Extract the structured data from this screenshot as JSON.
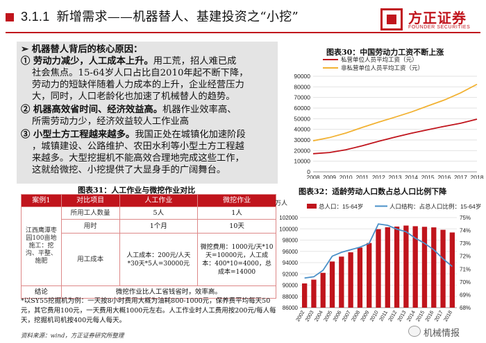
{
  "header": {
    "section_num": "3.1.1",
    "title": "新增需求——机器替人、基建投资之“小挖”",
    "logo_cn": "方正证券",
    "logo_en": "FOUNDER SECURITIES"
  },
  "panel": {
    "lines": [
      {
        "bold": "➢ 机器替人背后的核心原因：",
        "rest": ""
      },
      {
        "bold": "① 劳动力减少，人工成本上升。",
        "rest": "用工荒，招人难已成"
      },
      {
        "bold": "",
        "rest": "社会焦点。15-64岁人口占比自2010年起不断下降，"
      },
      {
        "bold": "",
        "rest": "劳动力的短缺伴随着人力成本的上升，企业经营压力"
      },
      {
        "bold": "",
        "rest": "大，同时，人口老龄化也加速了机械替人的趋势。"
      },
      {
        "bold": "② 机器高效省时间、经济效益高。",
        "rest": "机器作业效率高、"
      },
      {
        "bold": "",
        "rest": "所需劳动力少，经济效益较人工作业高"
      },
      {
        "bold": "③ 小型土方工程越来越多。",
        "rest": "我国正处在城镇化加速阶段"
      },
      {
        "bold": "",
        "rest": "，城镇建设、公路维护、农田水利等小型土方工程越"
      },
      {
        "bold": "",
        "rest": "来越多。大型挖掘机不能高效合理地完成这些工作，"
      },
      {
        "bold": "",
        "rest": "这就给微挖、小挖提供了大显身手的广阔舞台。"
      }
    ]
  },
  "table": {
    "caption": "图表31：人工作业与微挖作业对比",
    "headers": [
      "案例1",
      "对比项目",
      "人工作业",
      "微挖作业"
    ],
    "case_label": "江西鹰潭枣园100亩地施工：挖沟、平整、施肥",
    "rows": [
      {
        "item": "所用工人数量",
        "manual": "5人",
        "mini": "1人"
      },
      {
        "item": "用时",
        "manual": "1个月",
        "mini": "10天"
      },
      {
        "item": "用工成本",
        "manual": "人工成本：200元/人天*30天*5人=30000元",
        "mini": "微挖费用：1000元/天*10天=10000元，人工成本：400*10=4000，总成本=14000"
      }
    ],
    "conclusion_label": "结论",
    "conclusion": "微挖作业比人工省钱省时，效率高。",
    "note": "*以SY55挖掘机为例：一天按8小时费用大概为油耗800-1000元，保养费平均每天50元，其它费用100元，一天费用大概1000元左右。人工作业时人工费用按200元/每人每天，挖掘机司机按400元每人每天。",
    "source": "资料来源：wind，方正证券研究所整理"
  },
  "chart_data": [
    {
      "type": "line",
      "title": "图表30：中国劳动力工资不断上涨",
      "x": [
        "2008",
        "2009",
        "2010",
        "2011",
        "2012",
        "2013",
        "2014",
        "2015",
        "2016",
        "2017",
        "2018"
      ],
      "series": [
        {
          "name": "私营单位人员平均工资（元）",
          "color": "#c0141c",
          "values": [
            17071,
            18199,
            20759,
            24556,
            28752,
            32706,
            36390,
            39589,
            42833,
            45761,
            49575
          ]
        },
        {
          "name": "非私营单位人员平均工资（元）",
          "color": "#f2b233",
          "values": [
            29229,
            32244,
            36539,
            41799,
            46769,
            51483,
            56360,
            62029,
            67569,
            74318,
            82413
          ]
        }
      ],
      "ylim": [
        0,
        90000
      ],
      "yticks": [
        0,
        10000,
        20000,
        30000,
        40000,
        50000,
        60000,
        70000,
        80000,
        90000
      ],
      "grid": true,
      "legend": "top-left"
    },
    {
      "type": "bar",
      "title": "图表32：适龄劳动人口数占总人口比例下降",
      "ylabel": "万人",
      "categories": [
        "2002",
        "2003",
        "2004",
        "2005",
        "2006",
        "2007",
        "2008",
        "2009",
        "2010",
        "2011",
        "2012",
        "2013",
        "2014",
        "2015",
        "2016",
        "2017",
        "2018"
      ],
      "series": [
        {
          "name": "总人口：15-64岁",
          "color": "#c0141c",
          "values": [
            90302,
            90976,
            92184,
            94197,
            95068,
            95833,
            96680,
            97484,
            99938,
            100283,
            100403,
            100582,
            100469,
            100361,
            100260,
            99829,
            99357
          ]
        },
        {
          "name": "人口结构：占总人口比例：15-64岁",
          "color": "#4a90c8",
          "axis": "right",
          "values": [
            70.3,
            70.4,
            70.9,
            72.0,
            72.3,
            72.5,
            72.7,
            73.0,
            74.5,
            74.4,
            74.1,
            73.9,
            73.4,
            73.0,
            72.5,
            71.8,
            71.2
          ]
        }
      ],
      "ylim": [
        86000,
        102000
      ],
      "yticks": [
        86000,
        88000,
        90000,
        92000,
        94000,
        96000,
        98000,
        100000,
        102000
      ],
      "y2lim": [
        68,
        75
      ],
      "y2ticks": [
        "68%",
        "69%",
        "70%",
        "71%",
        "72%",
        "73%",
        "74%",
        "75%"
      ],
      "legend": "top"
    }
  ],
  "watermark": "机械情报"
}
